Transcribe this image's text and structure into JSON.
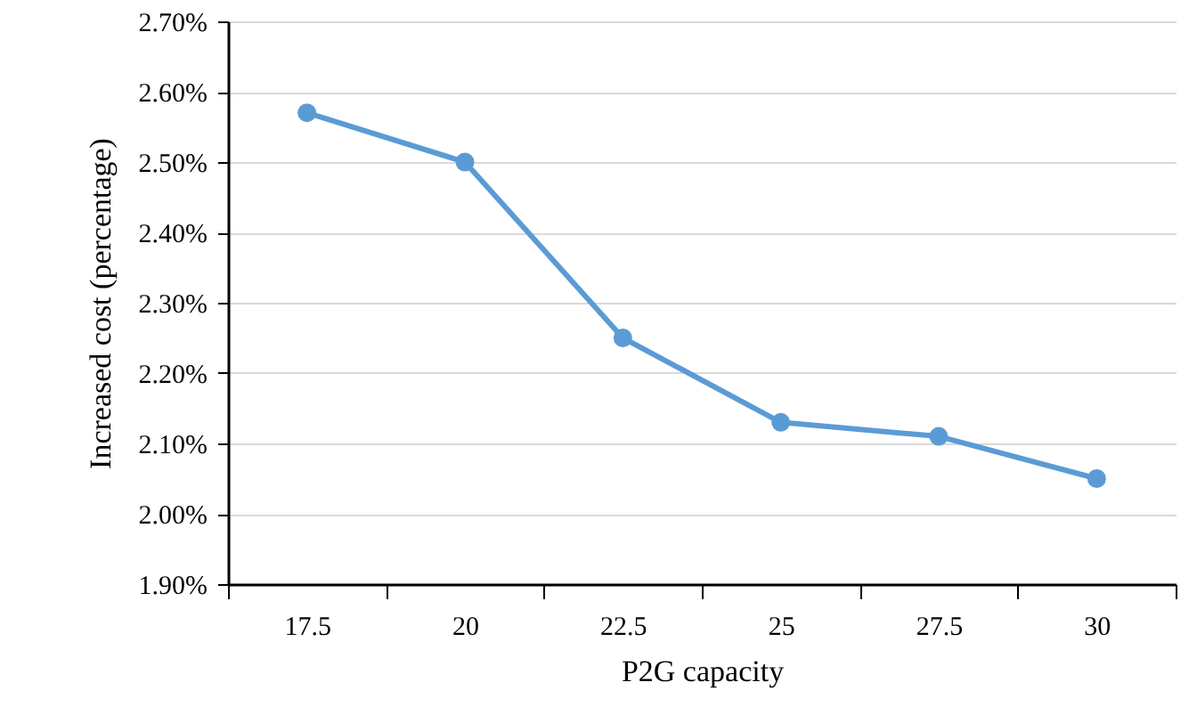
{
  "chart_data": {
    "type": "line",
    "xlabel": "P2G capacity",
    "ylabel": "Increased cost (percentage)",
    "categories": [
      "17.5",
      "20",
      "22.5",
      "25",
      "27.5",
      "30"
    ],
    "series": [
      {
        "color": "#5b9bd5",
        "values": [
          2.57,
          2.5,
          2.25,
          2.13,
          2.11,
          2.05
        ]
      }
    ],
    "ylim": [
      1.9,
      2.7
    ],
    "yticks": [
      {
        "value": 1.9,
        "label": "1.90%"
      },
      {
        "value": 2.0,
        "label": "2.00%"
      },
      {
        "value": 2.1,
        "label": "2.10%"
      },
      {
        "value": 2.2,
        "label": "2.20%"
      },
      {
        "value": 2.3,
        "label": "2.30%"
      },
      {
        "value": 2.4,
        "label": "2.40%"
      },
      {
        "value": 2.5,
        "label": "2.50%"
      },
      {
        "value": 2.6,
        "label": "2.60%"
      },
      {
        "value": 2.7,
        "label": "2.70%"
      }
    ],
    "grid": "y",
    "marker": "circle",
    "line_style": "solid"
  }
}
